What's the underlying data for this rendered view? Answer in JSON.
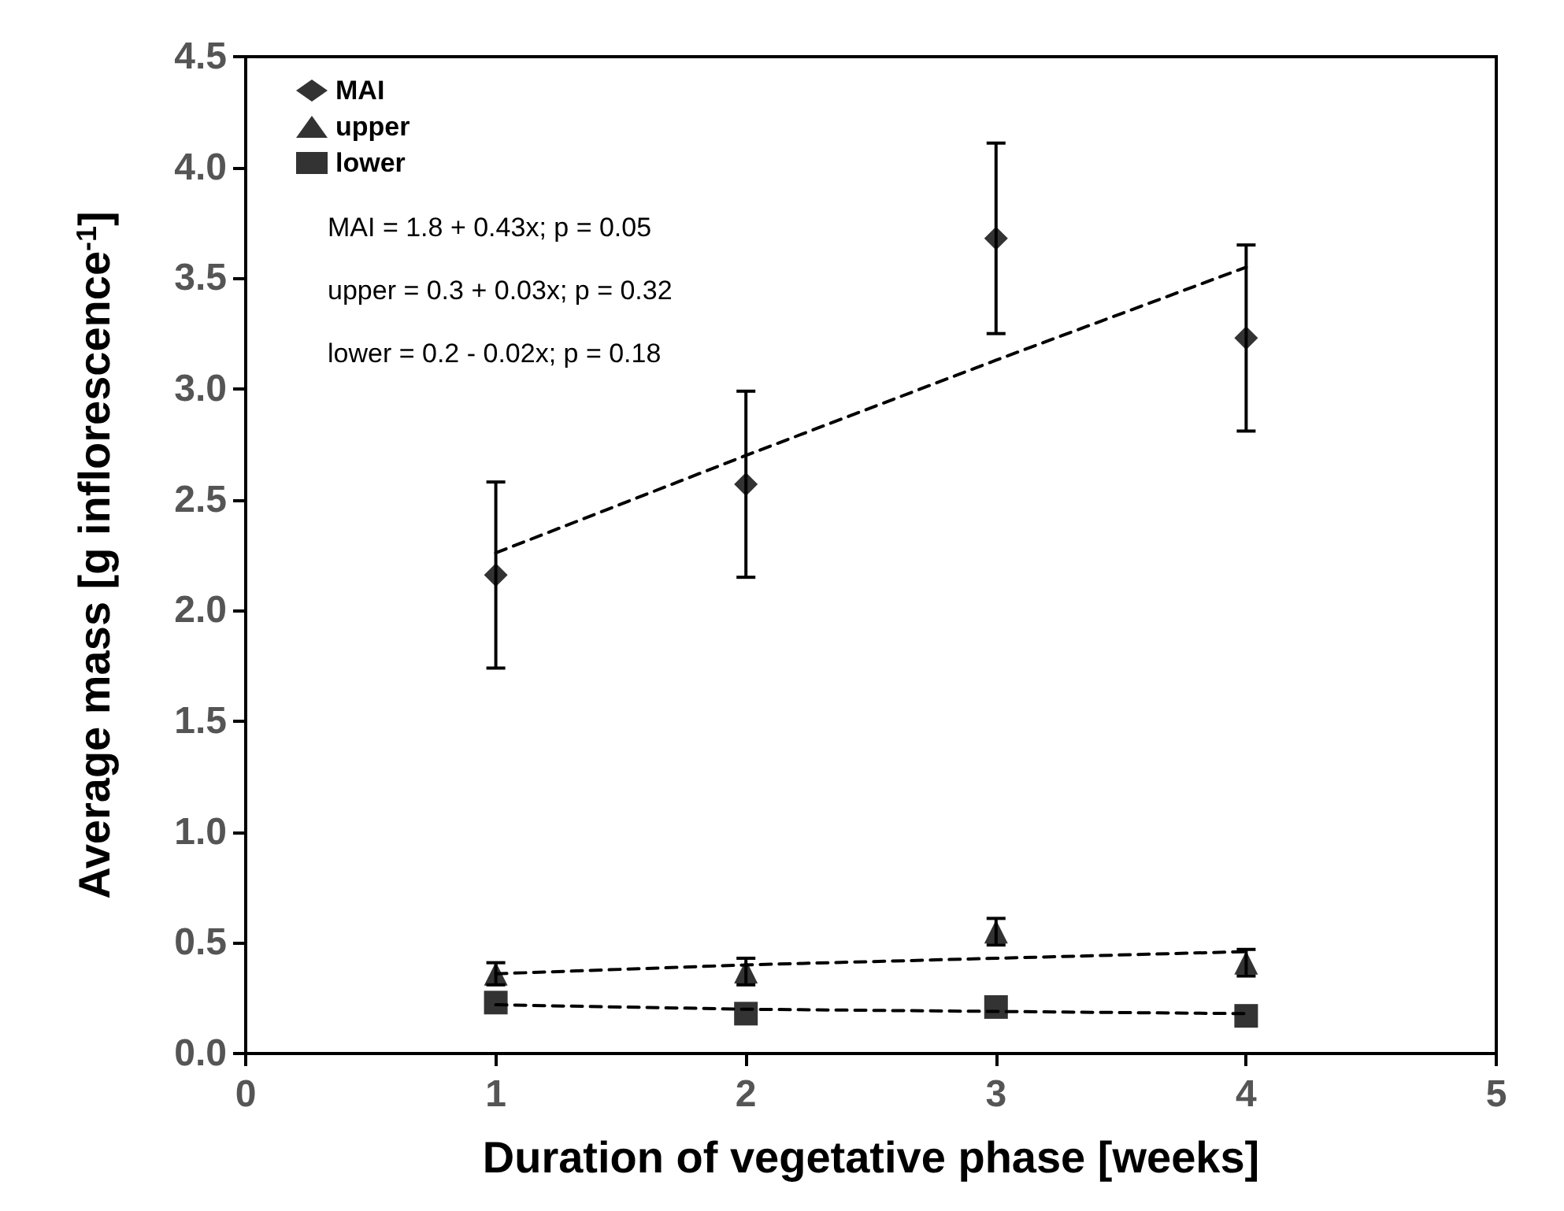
{
  "chart_data": {
    "type": "scatter",
    "xlabel": "Duration of vegetative phase [weeks]",
    "ylabel": "Average mass [g inflorescence$^{-1}$]",
    "x": [
      1,
      2,
      3,
      4
    ],
    "series": [
      {
        "name": "MAI",
        "color": "#000000",
        "marker": "diamond",
        "values": [
          2.16,
          2.57,
          3.68,
          3.23
        ],
        "errors": [
          0.42,
          0.42,
          0.43,
          0.42
        ]
      },
      {
        "name": "upper",
        "color": "#000000",
        "marker": "triangle",
        "values": [
          0.36,
          0.37,
          0.55,
          0.41
        ],
        "errors": [
          0.05,
          0.06,
          0.06,
          0.06
        ]
      },
      {
        "name": "lower",
        "color": "#000000",
        "marker": "square",
        "values": [
          0.23,
          0.18,
          0.21,
          0.17
        ]
      },
      {
        "type": "line",
        "color": "#000000",
        "line_style": "dashed",
        "values": [
          2.26,
          2.7,
          3.13,
          3.55
        ]
      },
      {
        "type": "line",
        "color": "#000000",
        "line_style": "dashed",
        "values": [
          0.36,
          0.4,
          0.43,
          0.46
        ]
      },
      {
        "type": "line",
        "color": "#000000",
        "line_style": "dashed",
        "values": [
          0.22,
          0.2,
          0.19,
          0.18
        ]
      }
    ],
    "xlim": [
      0,
      5
    ],
    "xticks": [
      0,
      1,
      2,
      3,
      4,
      5
    ],
    "ylim": [
      0,
      4.5
    ],
    "yticks": [
      {
        "value": 0,
        "label": "0.0"
      },
      0.5,
      {
        "value": 1,
        "label": "1.0"
      },
      1.5,
      {
        "value": 2,
        "label": "2.0"
      },
      2.5,
      {
        "value": 3,
        "label": "3.0"
      },
      3.5,
      {
        "value": 4,
        "label": "4.0"
      },
      4.5
    ],
    "annotations": [
      "MAI = 1.8 + 0.43x; p = 0.05",
      "upper = 0.3 + 0.03x; p = 0.32",
      "lower = 0.2 - 0.02x; p = 0.18"
    ],
    "legend": "top left",
    "grid": false
  }
}
